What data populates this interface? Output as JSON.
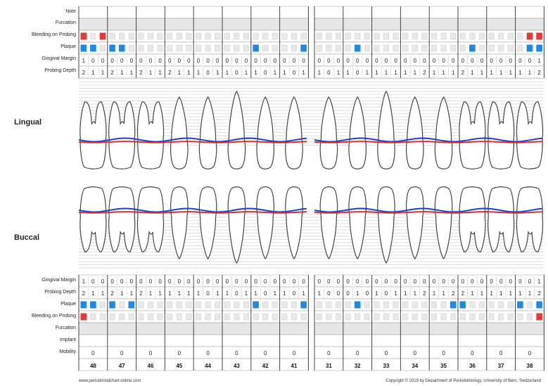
{
  "upper_rows": [
    "Note",
    "Furcation",
    "Bleeding on Probing",
    "Plaque",
    "Gingival Margin",
    "Probing Depth"
  ],
  "lower_rows": [
    "Gingival Margin",
    "Probing Depth",
    "Plaque",
    "Bleeding on Probing",
    "Furcation",
    "Implant",
    "Mobility"
  ],
  "side_lingual": "Lingual",
  "side_buccal": "Buccal",
  "teeth": [
    "48",
    "47",
    "46",
    "45",
    "44",
    "43",
    "42",
    "41",
    "31",
    "32",
    "33",
    "34",
    "35",
    "36",
    "37",
    "38"
  ],
  "mobility": [
    "0",
    "0",
    "0",
    "0",
    "0",
    "0",
    "0",
    "0",
    "0",
    "0",
    "0",
    "0",
    "0",
    "0",
    "0",
    "0"
  ],
  "gm_upper": [
    [
      "1",
      "0",
      "0"
    ],
    [
      "0",
      "0",
      "0"
    ],
    [
      "0",
      "0",
      "0"
    ],
    [
      "0",
      "0",
      "0"
    ],
    [
      "0",
      "0",
      "0"
    ],
    [
      "0",
      "0",
      "0"
    ],
    [
      "0",
      "0",
      "0"
    ],
    [
      "0",
      "0",
      "0"
    ],
    [
      "0",
      "0",
      "0"
    ],
    [
      "0",
      "0",
      "0"
    ],
    [
      "0",
      "0",
      "0"
    ],
    [
      "0",
      "0",
      "0"
    ],
    [
      "0",
      "0",
      "0"
    ],
    [
      "0",
      "0",
      "0"
    ],
    [
      "0",
      "0",
      "0"
    ],
    [
      "0",
      "0",
      "1"
    ]
  ],
  "pd_upper": [
    [
      "2",
      "1",
      "1"
    ],
    [
      "2",
      "1",
      "1"
    ],
    [
      "2",
      "1",
      "1"
    ],
    [
      "2",
      "1",
      "1"
    ],
    [
      "1",
      "0",
      "1"
    ],
    [
      "1",
      "0",
      "1"
    ],
    [
      "1",
      "0",
      "1"
    ],
    [
      "1",
      "0",
      "1"
    ],
    [
      "1",
      "0",
      "1"
    ],
    [
      "1",
      "0",
      "1"
    ],
    [
      "1",
      "1",
      "1"
    ],
    [
      "1",
      "1",
      "2"
    ],
    [
      "1",
      "1",
      "1"
    ],
    [
      "2",
      "1",
      "1"
    ],
    [
      "1",
      "1",
      "1"
    ],
    [
      "1",
      "1",
      "2"
    ]
  ],
  "gm_lower": [
    [
      "1",
      "0",
      "0"
    ],
    [
      "0",
      "0",
      "0"
    ],
    [
      "0",
      "0",
      "0"
    ],
    [
      "0",
      "0",
      "0"
    ],
    [
      "0",
      "0",
      "0"
    ],
    [
      "0",
      "0",
      "0"
    ],
    [
      "0",
      "0",
      "0"
    ],
    [
      "0",
      "0",
      "0"
    ],
    [
      "0",
      "0",
      "0"
    ],
    [
      "0",
      "0",
      "0"
    ],
    [
      "0",
      "0",
      "0"
    ],
    [
      "0",
      "0",
      "0"
    ],
    [
      "0",
      "0",
      "0"
    ],
    [
      "0",
      "0",
      "0"
    ],
    [
      "0",
      "0",
      "0"
    ],
    [
      "0",
      "0",
      "1"
    ]
  ],
  "pd_lower": [
    [
      "2",
      "1",
      "1"
    ],
    [
      "2",
      "1",
      "1"
    ],
    [
      "2",
      "1",
      "1"
    ],
    [
      "1",
      "1",
      "1"
    ],
    [
      "1",
      "0",
      "1"
    ],
    [
      "1",
      "0",
      "1"
    ],
    [
      "1",
      "0",
      "1"
    ],
    [
      "1",
      "0",
      "1"
    ],
    [
      "1",
      "0",
      "0"
    ],
    [
      "0",
      "1",
      "0"
    ],
    [
      "1",
      "0",
      "1"
    ],
    [
      "1",
      "1",
      "2"
    ],
    [
      "1",
      "1",
      "2"
    ],
    [
      "2",
      "1",
      "1"
    ],
    [
      "1",
      "1",
      "1"
    ],
    [
      "1",
      "1",
      "2"
    ]
  ],
  "plaque_upper": [
    [
      1,
      1,
      0
    ],
    [
      1,
      1,
      0
    ],
    [
      0,
      0,
      0
    ],
    [
      0,
      0,
      0
    ],
    [
      0,
      0,
      0
    ],
    [
      0,
      0,
      0
    ],
    [
      1,
      0,
      0
    ],
    [
      0,
      0,
      1
    ],
    [
      0,
      0,
      0
    ],
    [
      0,
      1,
      0
    ],
    [
      0,
      0,
      0
    ],
    [
      0,
      0,
      0
    ],
    [
      0,
      0,
      0
    ],
    [
      0,
      1,
      0
    ],
    [
      0,
      0,
      0
    ],
    [
      0,
      1,
      1
    ]
  ],
  "bop_upper": [
    [
      1,
      0,
      1
    ],
    [
      0,
      0,
      0
    ],
    [
      0,
      0,
      0
    ],
    [
      0,
      0,
      0
    ],
    [
      0,
      0,
      0
    ],
    [
      0,
      0,
      0
    ],
    [
      0,
      0,
      0
    ],
    [
      0,
      0,
      0
    ],
    [
      0,
      0,
      0
    ],
    [
      0,
      0,
      0
    ],
    [
      0,
      0,
      0
    ],
    [
      0,
      0,
      0
    ],
    [
      0,
      0,
      0
    ],
    [
      0,
      0,
      0
    ],
    [
      0,
      0,
      0
    ],
    [
      0,
      1,
      1
    ]
  ],
  "plaque_lower": [
    [
      1,
      1,
      0
    ],
    [
      1,
      0,
      1
    ],
    [
      0,
      0,
      0
    ],
    [
      0,
      0,
      0
    ],
    [
      0,
      0,
      0
    ],
    [
      0,
      0,
      0
    ],
    [
      1,
      0,
      0
    ],
    [
      0,
      0,
      1
    ],
    [
      0,
      0,
      0
    ],
    [
      0,
      1,
      0
    ],
    [
      0,
      0,
      0
    ],
    [
      0,
      0,
      0
    ],
    [
      0,
      0,
      1
    ],
    [
      1,
      0,
      0
    ],
    [
      0,
      0,
      0
    ],
    [
      1,
      0,
      1
    ]
  ],
  "bop_lower": [
    [
      1,
      0,
      0
    ],
    [
      0,
      0,
      0
    ],
    [
      0,
      0,
      0
    ],
    [
      0,
      0,
      0
    ],
    [
      0,
      0,
      0
    ],
    [
      0,
      0,
      0
    ],
    [
      0,
      0,
      0
    ],
    [
      0,
      0,
      0
    ],
    [
      0,
      0,
      0
    ],
    [
      0,
      0,
      0
    ],
    [
      0,
      0,
      0
    ],
    [
      0,
      0,
      0
    ],
    [
      0,
      0,
      0
    ],
    [
      0,
      0,
      0
    ],
    [
      0,
      0,
      0
    ],
    [
      0,
      0,
      1
    ]
  ],
  "colors": {
    "plaque": "#1e88e5",
    "bleeding": "#e53935",
    "gingival_line": "#d32f2f",
    "probing_line": "#1e40c8"
  },
  "footer_left": "www.periodontalchart-online.com",
  "footer_right": "Copyright © 2019 by Department of Periodontology, University of Bern, Switzerland"
}
